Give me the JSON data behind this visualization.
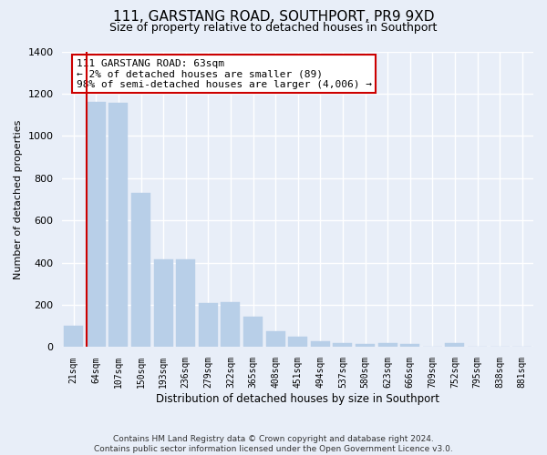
{
  "title1": "111, GARSTANG ROAD, SOUTHPORT, PR9 9XD",
  "title2": "Size of property relative to detached houses in Southport",
  "xlabel": "Distribution of detached houses by size in Southport",
  "ylabel": "Number of detached properties",
  "categories": [
    "21sqm",
    "64sqm",
    "107sqm",
    "150sqm",
    "193sqm",
    "236sqm",
    "279sqm",
    "322sqm",
    "365sqm",
    "408sqm",
    "451sqm",
    "494sqm",
    "537sqm",
    "580sqm",
    "623sqm",
    "666sqm",
    "709sqm",
    "752sqm",
    "795sqm",
    "838sqm",
    "881sqm"
  ],
  "values": [
    100,
    1160,
    1155,
    730,
    415,
    415,
    210,
    215,
    145,
    75,
    50,
    28,
    18,
    13,
    20,
    13,
    0,
    20,
    0,
    0,
    0
  ],
  "bar_color": "#b8cfe8",
  "bar_edgecolor": "#b8cfe8",
  "highlight_bar_index": 1,
  "highlight_color": "#cc0000",
  "annotation_line1": "111 GARSTANG ROAD: 63sqm",
  "annotation_line2": "← 2% of detached houses are smaller (89)",
  "annotation_line3": "98% of semi-detached houses are larger (4,006) →",
  "annotation_box_facecolor": "#ffffff",
  "annotation_box_edgecolor": "#cc0000",
  "ylim": [
    0,
    1400
  ],
  "yticks": [
    0,
    200,
    400,
    600,
    800,
    1000,
    1200,
    1400
  ],
  "footer_line1": "Contains HM Land Registry data © Crown copyright and database right 2024.",
  "footer_line2": "Contains public sector information licensed under the Open Government Licence v3.0.",
  "bg_color": "#e8eef8",
  "grid_color": "#ffffff",
  "title1_fontsize": 11,
  "title2_fontsize": 9
}
